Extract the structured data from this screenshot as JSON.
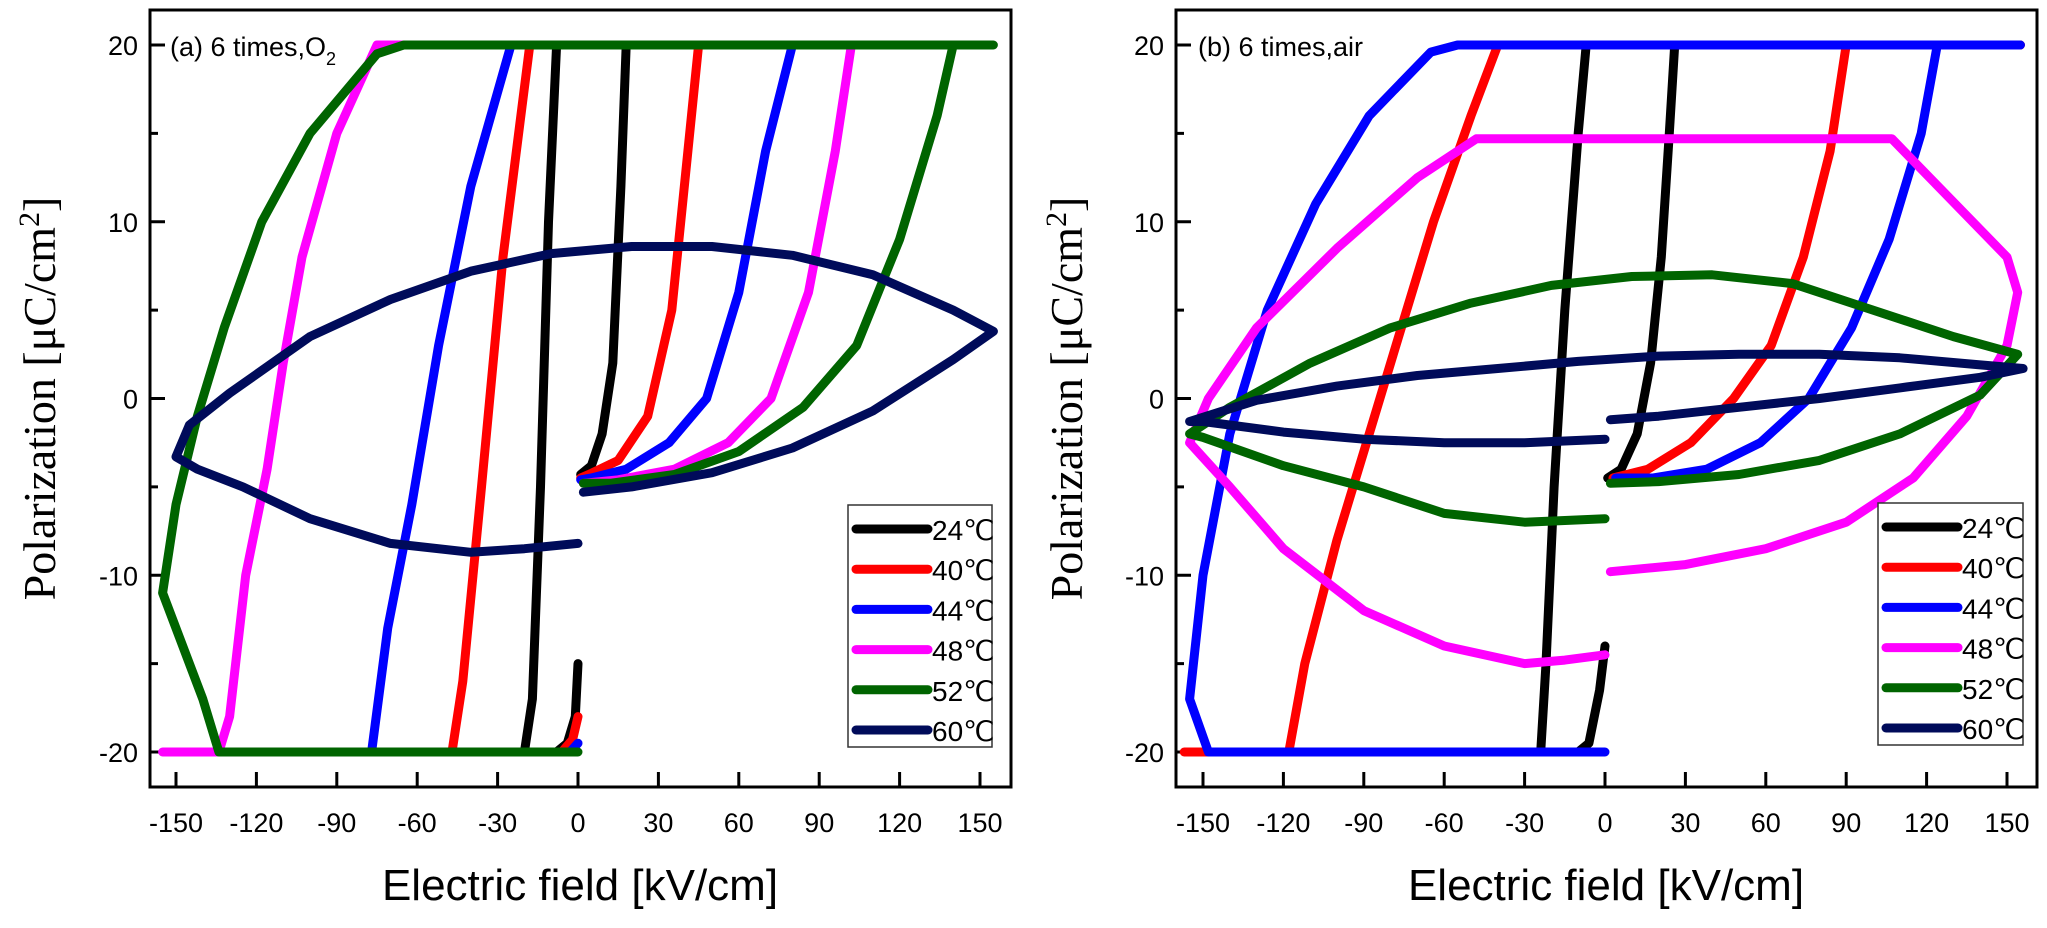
{
  "chart_data": [
    {
      "type": "line",
      "panel": "a",
      "title": "(a) 6 times,O",
      "title_subscript": "2",
      "xlabel": "Electric field [kV/cm]",
      "ylabel": "Polarization [μC/cm",
      "ylabel_superscript": "2",
      "ylabel_suffix": "]",
      "xlim": [
        -157,
        157
      ],
      "ylim": [
        -22.5,
        22
      ],
      "xticks": [
        -150,
        -120,
        -90,
        -60,
        -30,
        0,
        30,
        60,
        90,
        120,
        150
      ],
      "yticks": [
        -20,
        -10,
        0,
        10,
        20
      ],
      "yminor": [
        -15,
        -5,
        5,
        15
      ],
      "grid": false,
      "legend_position": "bottom-right",
      "series": [
        {
          "name": "24℃",
          "color": "#000000",
          "points": [
            [
              0,
              -15
            ],
            [
              -1,
              -18
            ],
            [
              -4,
              -19.5
            ],
            [
              -8,
              -20
            ],
            [
              -20,
              -20
            ],
            [
              -17,
              -17
            ],
            [
              -14,
              -5
            ],
            [
              -11,
              10
            ],
            [
              -8,
              20
            ],
            [
              18,
              20
            ],
            [
              16,
              12
            ],
            [
              13,
              2
            ],
            [
              9,
              -2
            ],
            [
              5,
              -3.8
            ],
            [
              1,
              -4.3
            ]
          ]
        },
        {
          "name": "40℃",
          "color": "#ff0000",
          "points": [
            [
              0,
              -18
            ],
            [
              -2,
              -19.3
            ],
            [
              -6,
              -20
            ],
            [
              -47,
              -20
            ],
            [
              -43,
              -16
            ],
            [
              -36,
              -5
            ],
            [
              -28,
              8
            ],
            [
              -18,
              20
            ],
            [
              60,
              20
            ],
            [
              45,
              20
            ],
            [
              41,
              14
            ],
            [
              35,
              5
            ],
            [
              26,
              -1
            ],
            [
              15,
              -3.5
            ],
            [
              4,
              -4.3
            ],
            [
              1,
              -4.5
            ]
          ]
        },
        {
          "name": "44℃",
          "color": "#0000ff",
          "points": [
            [
              0,
              -19.5
            ],
            [
              -3,
              -20
            ],
            [
              -77,
              -20
            ],
            [
              -71,
              -13
            ],
            [
              -62,
              -6
            ],
            [
              -52,
              3
            ],
            [
              -40,
              12
            ],
            [
              -25,
              20
            ],
            [
              130,
              20
            ],
            [
              94,
              20
            ],
            [
              80,
              20
            ],
            [
              70,
              14
            ],
            [
              60,
              6
            ],
            [
              48,
              0
            ],
            [
              34,
              -2.5
            ],
            [
              18,
              -4
            ],
            [
              5,
              -4.5
            ],
            [
              1,
              -4.6
            ]
          ]
        },
        {
          "name": "48℃",
          "color": "#ff00ff",
          "points": [
            [
              -155,
              -20
            ],
            [
              -134,
              -20
            ],
            [
              -130,
              -18
            ],
            [
              -124,
              -10
            ],
            [
              -116,
              -4
            ],
            [
              -110,
              2
            ],
            [
              -103,
              8
            ],
            [
              -90,
              15
            ],
            [
              -75,
              20
            ],
            [
              120,
              20
            ],
            [
              102,
              20
            ],
            [
              96,
              14
            ],
            [
              86,
              6
            ],
            [
              72,
              0
            ],
            [
              56,
              -2.5
            ],
            [
              36,
              -4
            ],
            [
              15,
              -4.6
            ],
            [
              2,
              -4.8
            ]
          ]
        },
        {
          "name": "52℃",
          "color": "#006400",
          "points": [
            [
              0,
              -20
            ],
            [
              -134,
              -20
            ],
            [
              -140,
              -17
            ],
            [
              -155,
              -11
            ],
            [
              -150,
              -6
            ],
            [
              -142,
              -1
            ],
            [
              -132,
              4
            ],
            [
              -118,
              10
            ],
            [
              -100,
              15
            ],
            [
              -75,
              19.5
            ],
            [
              -65,
              20
            ],
            [
              155,
              20
            ],
            [
              140,
              20
            ],
            [
              134,
              16
            ],
            [
              120,
              9
            ],
            [
              104,
              3
            ],
            [
              84,
              -0.5
            ],
            [
              60,
              -3
            ],
            [
              36,
              -4.3
            ],
            [
              12,
              -4.8
            ],
            [
              2,
              -4.8
            ]
          ]
        },
        {
          "name": "60℃",
          "color": "#000b5a",
          "points": [
            [
              0,
              -8.2
            ],
            [
              -20,
              -8.5
            ],
            [
              -40,
              -8.7
            ],
            [
              -70,
              -8.2
            ],
            [
              -100,
              -6.8
            ],
            [
              -125,
              -5
            ],
            [
              -142,
              -4
            ],
            [
              -150,
              -3.3
            ],
            [
              -145,
              -1.5
            ],
            [
              -130,
              0.3
            ],
            [
              -100,
              3.5
            ],
            [
              -70,
              5.6
            ],
            [
              -40,
              7.2
            ],
            [
              -10,
              8.2
            ],
            [
              20,
              8.6
            ],
            [
              50,
              8.6
            ],
            [
              80,
              8.1
            ],
            [
              110,
              7
            ],
            [
              140,
              5
            ],
            [
              155,
              3.8
            ],
            [
              140,
              2.2
            ],
            [
              110,
              -0.7
            ],
            [
              80,
              -2.8
            ],
            [
              50,
              -4.2
            ],
            [
              20,
              -5
            ],
            [
              2,
              -5.3
            ]
          ]
        }
      ]
    },
    {
      "type": "line",
      "panel": "b",
      "title": "(b) 6 times,air",
      "title_subscript": "",
      "xlabel": "Electric field [kV/cm]",
      "ylabel": "Polarization [μC/cm",
      "ylabel_superscript": "2",
      "ylabel_suffix": "]",
      "xlim": [
        -157,
        157
      ],
      "ylim": [
        -22.5,
        22
      ],
      "xticks": [
        -150,
        -120,
        -90,
        -60,
        -30,
        0,
        30,
        60,
        90,
        120,
        150
      ],
      "yticks": [
        -20,
        -10,
        0,
        10,
        20
      ],
      "yminor": [
        -15,
        -5,
        5,
        15
      ],
      "grid": false,
      "legend_position": "bottom-right",
      "series": [
        {
          "name": "24℃",
          "color": "#000000",
          "points": [
            [
              0,
              -14
            ],
            [
              -2,
              -16.5
            ],
            [
              -6,
              -19.5
            ],
            [
              -10,
              -20
            ],
            [
              -24,
              -20
            ],
            [
              -22,
              -15
            ],
            [
              -19,
              -5
            ],
            [
              -15,
              5
            ],
            [
              -10,
              15
            ],
            [
              -7,
              20
            ],
            [
              155,
              20
            ],
            [
              26,
              20
            ],
            [
              24,
              15
            ],
            [
              21,
              8
            ],
            [
              17,
              2
            ],
            [
              12,
              -2
            ],
            [
              6,
              -4
            ],
            [
              1,
              -4.5
            ]
          ]
        },
        {
          "name": "40℃",
          "color": "#ff0000",
          "points": [
            [
              -157,
              -20
            ],
            [
              -118,
              -20
            ],
            [
              -112,
              -15
            ],
            [
              -100,
              -8
            ],
            [
              -88,
              -2
            ],
            [
              -76,
              4
            ],
            [
              -64,
              10
            ],
            [
              -50,
              16
            ],
            [
              -40,
              20
            ],
            [
              155,
              20
            ],
            [
              90,
              20
            ],
            [
              84,
              14
            ],
            [
              74,
              8
            ],
            [
              62,
              3
            ],
            [
              48,
              0
            ],
            [
              32,
              -2.5
            ],
            [
              16,
              -4
            ],
            [
              3,
              -4.5
            ]
          ]
        },
        {
          "name": "44℃",
          "color": "#0000ff",
          "points": [
            [
              0,
              -20
            ],
            [
              -148,
              -20
            ],
            [
              -155,
              -17
            ],
            [
              -150,
              -10
            ],
            [
              -140,
              -2
            ],
            [
              -126,
              5
            ],
            [
              -108,
              11
            ],
            [
              -88,
              16
            ],
            [
              -65,
              19.6
            ],
            [
              -55,
              20
            ],
            [
              155,
              20
            ],
            [
              124,
              20
            ],
            [
              118,
              15
            ],
            [
              106,
              9
            ],
            [
              92,
              4
            ],
            [
              76,
              0
            ],
            [
              58,
              -2.5
            ],
            [
              38,
              -4
            ],
            [
              18,
              -4.5
            ],
            [
              4,
              -4.5
            ]
          ]
        },
        {
          "name": "48℃",
          "color": "#ff00ff",
          "points": [
            [
              0,
              -14.5
            ],
            [
              -15,
              -14.8
            ],
            [
              -30,
              -15
            ],
            [
              -60,
              -14
            ],
            [
              -90,
              -12
            ],
            [
              -120,
              -8.5
            ],
            [
              -140,
              -5
            ],
            [
              -155,
              -2.5
            ],
            [
              -148,
              0
            ],
            [
              -130,
              4
            ],
            [
              -100,
              8.5
            ],
            [
              -70,
              12.5
            ],
            [
              -48,
              14.7
            ],
            [
              107,
              14.7
            ],
            [
              150,
              8
            ],
            [
              154,
              6
            ],
            [
              150,
              3
            ],
            [
              135,
              -1
            ],
            [
              115,
              -4.5
            ],
            [
              90,
              -7
            ],
            [
              60,
              -8.5
            ],
            [
              30,
              -9.4
            ],
            [
              2,
              -9.8
            ]
          ]
        },
        {
          "name": "52℃",
          "color": "#006400",
          "points": [
            [
              0,
              -6.8
            ],
            [
              -30,
              -7
            ],
            [
              -60,
              -6.5
            ],
            [
              -90,
              -5
            ],
            [
              -120,
              -3.8
            ],
            [
              -150,
              -2.2
            ],
            [
              -155,
              -2
            ],
            [
              -140,
              -0.5
            ],
            [
              -110,
              2
            ],
            [
              -80,
              4
            ],
            [
              -50,
              5.4
            ],
            [
              -20,
              6.4
            ],
            [
              10,
              6.9
            ],
            [
              40,
              7
            ],
            [
              70,
              6.5
            ],
            [
              100,
              5
            ],
            [
              130,
              3.5
            ],
            [
              154,
              2.5
            ],
            [
              140,
              0.2
            ],
            [
              110,
              -2
            ],
            [
              80,
              -3.5
            ],
            [
              50,
              -4.3
            ],
            [
              20,
              -4.7
            ],
            [
              2,
              -4.8
            ]
          ]
        },
        {
          "name": "60℃",
          "color": "#000b5a",
          "points": [
            [
              0,
              -2.3
            ],
            [
              -30,
              -2.5
            ],
            [
              -60,
              -2.5
            ],
            [
              -90,
              -2.3
            ],
            [
              -120,
              -1.9
            ],
            [
              -150,
              -1.3
            ],
            [
              -155,
              -1.3
            ],
            [
              -130,
              -0.1
            ],
            [
              -100,
              0.7
            ],
            [
              -70,
              1.3
            ],
            [
              -40,
              1.7
            ],
            [
              -10,
              2.1
            ],
            [
              20,
              2.4
            ],
            [
              50,
              2.5
            ],
            [
              80,
              2.5
            ],
            [
              110,
              2.3
            ],
            [
              140,
              1.9
            ],
            [
              156,
              1.7
            ],
            [
              140,
              1.2
            ],
            [
              110,
              0.6
            ],
            [
              80,
              0
            ],
            [
              50,
              -0.5
            ],
            [
              20,
              -1
            ],
            [
              2,
              -1.2
            ]
          ]
        }
      ]
    }
  ],
  "legend": {
    "items": [
      "24℃",
      "40℃",
      "44℃",
      "48℃",
      "52℃",
      "60℃"
    ]
  }
}
